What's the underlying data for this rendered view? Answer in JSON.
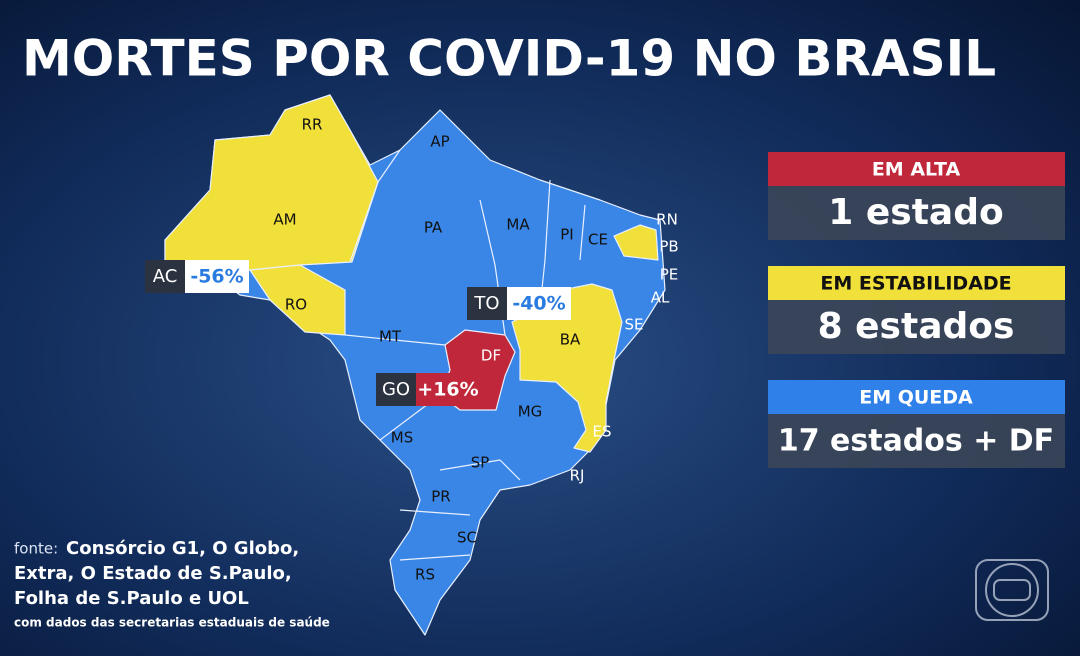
{
  "header": {
    "title": "MORTES POR COVID-19 NO BRASIL"
  },
  "states": [
    "RR",
    "AP",
    "AM",
    "PA",
    "MA",
    "PI",
    "CE",
    "RN",
    "PB",
    "PE",
    "AL",
    "SE",
    "BA",
    "MT",
    "DF",
    "MG",
    "MS",
    "ES",
    "SP",
    "RJ",
    "PR",
    "SC",
    "RS",
    "RO"
  ],
  "callouts": [
    {
      "state": "AC",
      "change": "-56%"
    },
    {
      "state": "TO",
      "change": "-40%"
    },
    {
      "state": "GO",
      "change": "+16%"
    }
  ],
  "legend": [
    {
      "label": "EM ALTA",
      "value": "1 estado"
    },
    {
      "label": "EM ESTABILIDADE",
      "value": "8 estados"
    },
    {
      "label": "EM QUEDA",
      "value": "17 estados + DF"
    }
  ],
  "source": {
    "prefix": "fonte:",
    "lines": [
      "Consórcio G1, O Globo,",
      "Extra, O Estado de S.Paulo,",
      "Folha de S.Paulo e UOL"
    ],
    "note": "com dados das secretarias estaduais de saúde"
  }
}
